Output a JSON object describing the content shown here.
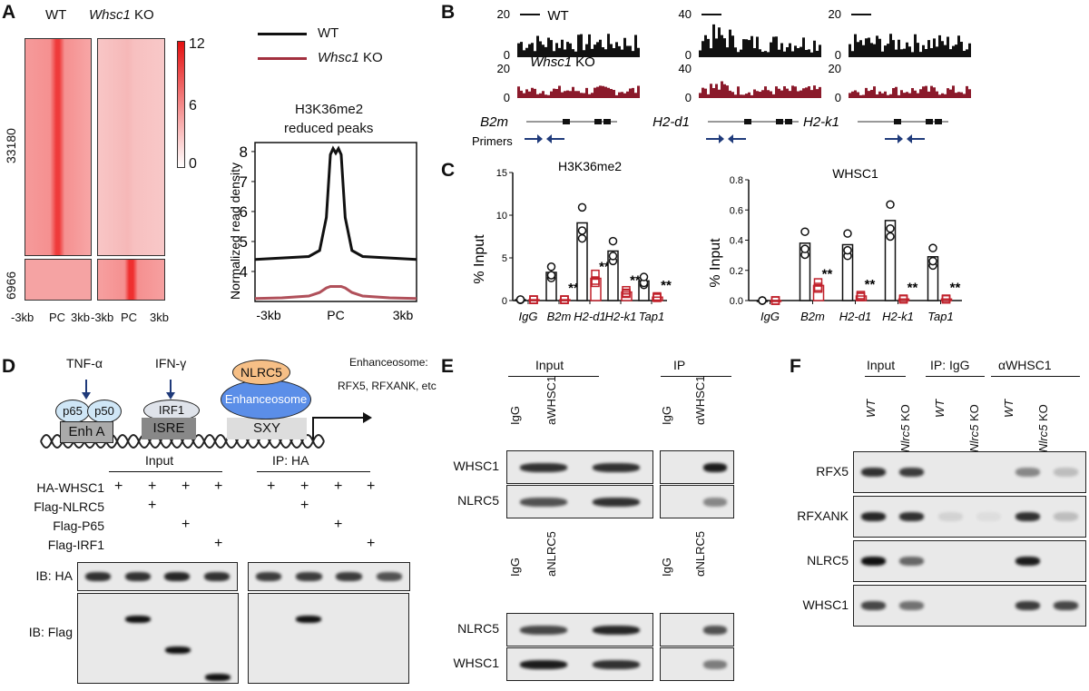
{
  "panels": {
    "A": {
      "label": "A",
      "heatmap": {
        "col_labels": [
          "WT",
          "KO"
        ],
        "col_label_prefix": "Whsc1",
        "row_labels": [
          "33180",
          "6966"
        ],
        "x_ticks": [
          "-3kb",
          "PC",
          "3kb",
          "-3kb",
          "PC",
          "3kb"
        ],
        "colorbar_ticks": [
          "12",
          "6",
          "0"
        ]
      },
      "legend": [
        {
          "prefix": "",
          "name": "WT",
          "color": "#111111"
        },
        {
          "prefix": "Whsc1",
          "name": "KO",
          "color": "#a3303f"
        }
      ],
      "profile_title": [
        "H3K36me2",
        "reduced peaks"
      ]
    },
    "B": {
      "label": "B",
      "wt_label": "WT",
      "ko_prefix": "Whsc1",
      "ko_label": "KO",
      "primers_label": "Primers",
      "loci": [
        {
          "gene": "B2m",
          "scale_wt": "20",
          "scale_ko": "20",
          "zero": "0"
        },
        {
          "gene": "H2-d1",
          "scale_wt": "40",
          "scale_ko": "40",
          "zero": "0"
        },
        {
          "gene": "H2-k1",
          "scale_wt": "20",
          "scale_ko": "20",
          "zero": "0"
        }
      ],
      "colors": {
        "wt": "#111111",
        "ko": "#8b1a2b",
        "primer": "#1f3a7a"
      }
    },
    "C": {
      "label": "C"
    },
    "D": {
      "label": "D",
      "diagram": {
        "tnf": "TNF-α",
        "ifn": "IFN-γ",
        "p65": "p65",
        "p50": "p50",
        "irf1": "IRF1",
        "enha": "Enh A",
        "isre": "ISRE",
        "sxy": "SXY",
        "nlrc5": "NLRC5",
        "enh": "Enhanceosome",
        "note1": "Enhanceosome:",
        "note2": "RFX5, RFXANK, etc"
      },
      "groups": [
        "Input",
        "IP: HA"
      ],
      "rows": [
        {
          "label": "HA-WHSC1",
          "marks": [
            "+",
            "+",
            "+",
            "+"
          ]
        },
        {
          "label": "Flag-NLRC5",
          "marks": [
            "",
            "+",
            "",
            ""
          ]
        },
        {
          "label": "Flag-P65",
          "marks": [
            "",
            "",
            "+",
            ""
          ]
        },
        {
          "label": "Flag-IRF1",
          "marks": [
            "",
            "",
            "",
            "+"
          ]
        }
      ],
      "blots": [
        {
          "label": "IB: HA",
          "input": [
            0.85,
            0.85,
            0.9,
            0.85
          ],
          "ip": [
            0.8,
            0.8,
            0.8,
            0.7
          ]
        },
        {
          "label": "IB: Flag",
          "input_bands": [
            null,
            "upper",
            "middle",
            "lower"
          ],
          "ip_bands": [
            null,
            "upper",
            null,
            null
          ]
        }
      ]
    },
    "E": {
      "label": "E",
      "sets": [
        {
          "groups": [
            "Input",
            "IP"
          ],
          "lanes": [
            "IgG",
            "aWHSC1",
            "IgG",
            "αWHSC1"
          ],
          "rows": [
            {
              "label": "WHSC1",
              "input": [
                0.85,
                0.85
              ],
              "ip": [
                0,
                0.95
              ]
            },
            {
              "label": "NLRC5",
              "input": [
                0.7,
                0.85
              ],
              "ip": [
                0,
                0.45
              ]
            }
          ]
        },
        {
          "lanes": [
            "IgG",
            "aNLRC5",
            "IgG",
            "αNLRC5"
          ],
          "rows": [
            {
              "label": "NLRC5",
              "input": [
                0.75,
                0.9
              ],
              "ip": [
                0,
                0.7
              ]
            },
            {
              "label": "WHSC1",
              "input": [
                0.95,
                0.85
              ],
              "ip": [
                0,
                0.5
              ]
            }
          ]
        }
      ]
    },
    "F": {
      "label": "F",
      "groups": [
        "Input",
        "IP: IgG",
        "αWHSC1"
      ],
      "lanes": [
        {
          "pre": "WT",
          "ko": ""
        },
        {
          "pre": "Nlrc5",
          "ko": " KO"
        },
        {
          "pre": "WT",
          "ko": ""
        },
        {
          "pre": "Nlrc5",
          "ko": " KO"
        },
        {
          "pre": "WT",
          "ko": ""
        },
        {
          "pre": "Nlrc5",
          "ko": " KO"
        }
      ],
      "rows": [
        {
          "label": "RFX5",
          "vals": [
            0.85,
            0.8,
            0,
            0,
            0.45,
            0.2
          ]
        },
        {
          "label": "RFXANK",
          "vals": [
            0.9,
            0.85,
            0.1,
            0.05,
            0.85,
            0.2
          ]
        },
        {
          "label": "NLRC5",
          "vals": [
            1,
            0.6,
            0,
            0,
            0.95,
            0
          ]
        },
        {
          "label": "WHSC1",
          "vals": [
            0.75,
            0.55,
            0,
            0,
            0.8,
            0.75
          ]
        }
      ]
    }
  },
  "chart_data": [
    {
      "type": "line",
      "title": "H3K36me2 reduced peaks",
      "ylabel": "Normalized read density",
      "xlabel": "",
      "x_ticks": [
        "-3kb",
        "PC",
        "3kb"
      ],
      "ylim": [
        3,
        8.3
      ],
      "y_ticks": [
        4,
        5,
        6,
        7,
        8
      ],
      "x": [
        -3,
        -2,
        -1,
        -0.6,
        -0.35,
        -0.2,
        -0.1,
        0,
        0.1,
        0.2,
        0.35,
        0.6,
        1,
        2,
        3
      ],
      "series": [
        {
          "name": "WT",
          "values": [
            4.4,
            4.45,
            4.5,
            4.7,
            5.8,
            7.9,
            8.1,
            7.95,
            8.1,
            7.9,
            5.8,
            4.7,
            4.5,
            4.45,
            4.4
          ]
        },
        {
          "name": "Whsc1 KO",
          "values": [
            3.1,
            3.12,
            3.18,
            3.3,
            3.45,
            3.5,
            3.5,
            3.5,
            3.5,
            3.5,
            3.45,
            3.3,
            3.18,
            3.12,
            3.1
          ]
        }
      ]
    },
    {
      "type": "bar",
      "title": "H3K36me2",
      "ylabel": "% Input",
      "ylim": [
        0,
        15
      ],
      "y_ticks": [
        "0",
        "5",
        "10",
        "15"
      ],
      "categories": [
        "IgG",
        "B2m",
        "H2-d1",
        "H2-k1",
        "Tap1"
      ],
      "series": [
        {
          "name": "WT",
          "values": [
            0.1,
            3.3,
            9.1,
            5.8,
            2.3
          ]
        },
        {
          "name": "Whsc1 KO",
          "values": [
            0.1,
            0.1,
            2.6,
            1.0,
            0.4
          ]
        }
      ],
      "annotations": [
        "",
        "**",
        "**",
        "**",
        "**"
      ]
    },
    {
      "type": "bar",
      "title": "WHSC1",
      "ylabel": "% Input",
      "ylim": [
        0,
        0.8
      ],
      "y_ticks": [
        "0.0",
        "0.2",
        "0.4",
        "0.6",
        "0.8"
      ],
      "categories": [
        "IgG",
        "B2m",
        "H2-d1",
        "H2-k1",
        "Tap1"
      ],
      "series": [
        {
          "name": "WT",
          "values": [
            0,
            0.38,
            0.37,
            0.53,
            0.29
          ]
        },
        {
          "name": "Whsc1 KO",
          "values": [
            0,
            0.1,
            0.03,
            0.01,
            0.01
          ]
        }
      ],
      "annotations": [
        "",
        "**",
        "**",
        "**",
        "**"
      ]
    }
  ]
}
